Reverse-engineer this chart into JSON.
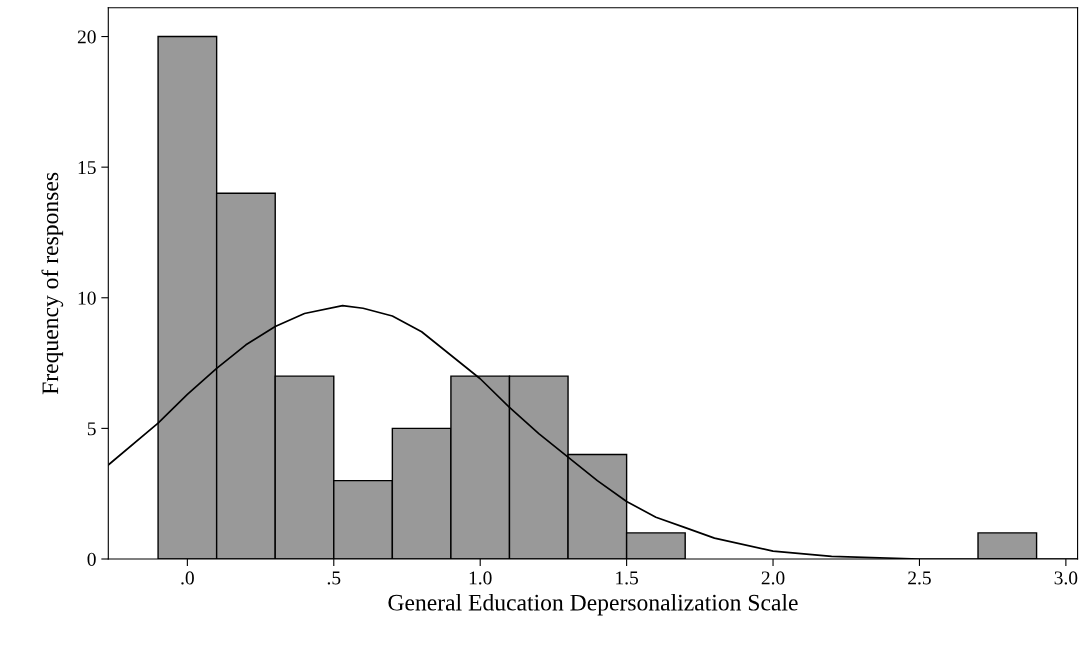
{
  "chart_data": {
    "type": "histogram",
    "xlabel": "General Education Depersonalization Scale",
    "ylabel": "Frequency of responses",
    "bins": [
      -0.1,
      0.1,
      0.3,
      0.5,
      0.7,
      0.9,
      1.1,
      1.3,
      1.5,
      1.7,
      1.9,
      2.1,
      2.3,
      2.5,
      2.7,
      2.9
    ],
    "values": [
      20,
      14,
      7,
      3,
      5,
      7,
      7,
      4,
      1,
      0,
      0,
      0,
      0,
      0,
      1
    ],
    "color": "#999999",
    "series": [
      {
        "type": "line",
        "color": "#000000",
        "x": [
          -0.27,
          -0.1,
          0.0,
          0.1,
          0.2,
          0.3,
          0.4,
          0.53,
          0.6,
          0.7,
          0.8,
          0.9,
          1.0,
          1.1,
          1.2,
          1.3,
          1.4,
          1.5,
          1.6,
          1.7,
          1.8,
          2.0,
          2.2,
          2.5,
          3.04
        ],
        "values": [
          3.6,
          5.2,
          6.3,
          7.3,
          8.2,
          8.9,
          9.4,
          9.7,
          9.6,
          9.3,
          8.7,
          7.8,
          6.9,
          5.8,
          4.8,
          3.9,
          3.0,
          2.2,
          1.6,
          1.2,
          0.8,
          0.3,
          0.1,
          0.0,
          0.0
        ]
      }
    ],
    "xlim": [
      -0.27,
      3.04
    ],
    "ylim": [
      0,
      21.1
    ],
    "xticks": [
      {
        "value": 0,
        "label": ".0"
      },
      {
        "value": 0.5,
        "label": ".5"
      },
      {
        "value": 1.0,
        "label": "1.0"
      },
      {
        "value": 1.5,
        "label": "1.5"
      },
      {
        "value": 2.0,
        "label": "2.0"
      },
      {
        "value": 2.5,
        "label": "2.5"
      },
      {
        "value": 3.0,
        "label": "3.0"
      }
    ],
    "yticks": [
      0,
      5,
      10,
      15,
      20
    ],
    "grid": false,
    "legend": false
  }
}
